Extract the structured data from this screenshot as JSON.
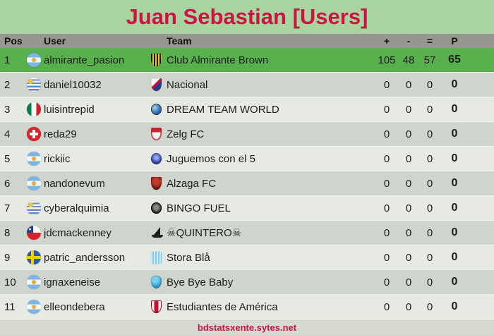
{
  "title": "Juan Sebastian [Users]",
  "footer": {
    "site_link": "bdstatsxente.sytes.net"
  },
  "colors": {
    "title_bg": "#a6d5a0",
    "accent_crimson": "#cf1244",
    "header_bg": "#96978d",
    "highlight_row_green": "#58b04d",
    "row_gray": "#cfd4cc",
    "row_light": "#e7eae2",
    "footer_bg": "#d6dacf",
    "text": "#1c1c1c"
  },
  "columns": {
    "pos": "Pos",
    "user": "User",
    "team": "Team",
    "plus": "+",
    "minus": "-",
    "equal": "=",
    "points": "P"
  },
  "rows": [
    {
      "pos": "1",
      "flag": "argentina",
      "user": "almirante_pasion",
      "badge": "almirante-brown",
      "team": "Club Almirante Brown",
      "plus": "105",
      "minus": "48",
      "equal": "57",
      "points": "65",
      "highlight": true
    },
    {
      "pos": "2",
      "flag": "uruguay",
      "user": "daniel10032",
      "badge": "nacional",
      "team": "Nacional",
      "plus": "0",
      "minus": "0",
      "equal": "0",
      "points": "0",
      "highlight": false
    },
    {
      "pos": "3",
      "flag": "mexico",
      "user": "luisintrepid",
      "badge": "dream-team-world",
      "team": "DREAM TEAM WORLD",
      "plus": "0",
      "minus": "0",
      "equal": "0",
      "points": "0",
      "highlight": false
    },
    {
      "pos": "4",
      "flag": "switzerland",
      "user": "reda29",
      "badge": "zelg",
      "team": "Zelg FC",
      "plus": "0",
      "minus": "0",
      "equal": "0",
      "points": "0",
      "highlight": false
    },
    {
      "pos": "5",
      "flag": "argentina",
      "user": "rickiic",
      "badge": "juguemos",
      "team": "Juguemos con el 5",
      "plus": "0",
      "minus": "0",
      "equal": "0",
      "points": "0",
      "highlight": false
    },
    {
      "pos": "6",
      "flag": "argentina",
      "user": "nandonevum",
      "badge": "alzaga",
      "team": "Alzaga FC",
      "plus": "0",
      "minus": "0",
      "equal": "0",
      "points": "0",
      "highlight": false
    },
    {
      "pos": "7",
      "flag": "uruguay",
      "user": "cyberalquimia",
      "badge": "bingo-fuel",
      "team": "BINGO FUEL",
      "plus": "0",
      "minus": "0",
      "equal": "0",
      "points": "0",
      "highlight": false
    },
    {
      "pos": "8",
      "flag": "chile",
      "user": "jdcmackenney",
      "badge": "quintero",
      "team": "☠QUINTERO☠",
      "plus": "0",
      "minus": "0",
      "equal": "0",
      "points": "0",
      "highlight": false
    },
    {
      "pos": "9",
      "flag": "sweden",
      "user": "patric_andersson",
      "badge": "stora-bla",
      "team": "Stora Blå",
      "plus": "0",
      "minus": "0",
      "equal": "0",
      "points": "0",
      "highlight": false
    },
    {
      "pos": "10",
      "flag": "argentina",
      "user": "ignaxeneise",
      "badge": "bye-bye-baby",
      "team": "Bye Bye Baby",
      "plus": "0",
      "minus": "0",
      "equal": "0",
      "points": "0",
      "highlight": false
    },
    {
      "pos": "11",
      "flag": "argentina",
      "user": "elleondebera",
      "badge": "estudiantes",
      "team": "Estudiantes de América",
      "plus": "0",
      "minus": "0",
      "equal": "0",
      "points": "0",
      "highlight": false
    }
  ]
}
